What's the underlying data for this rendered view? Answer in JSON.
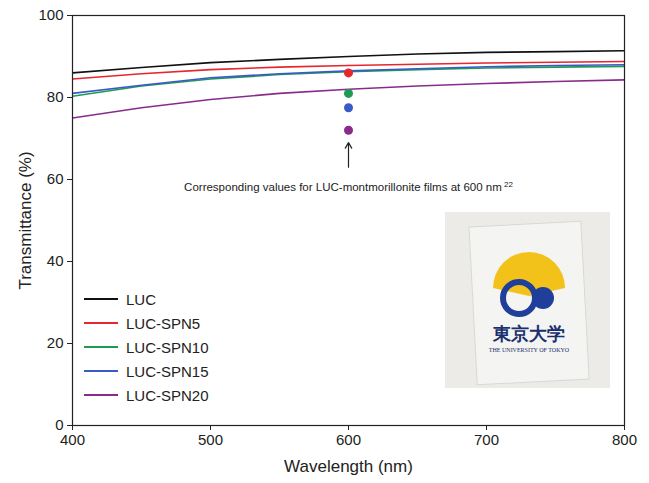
{
  "chart_data": {
    "type": "line",
    "xlabel": "Wavelength (nm)",
    "ylabel": "Transmittance (%)",
    "x": [
      400,
      450,
      500,
      550,
      600,
      650,
      700,
      750,
      800
    ],
    "xlim": [
      400,
      800
    ],
    "xticks": [
      400,
      500,
      600,
      700,
      800
    ],
    "ylim": [
      0,
      100
    ],
    "yticks": [
      0,
      20,
      40,
      60,
      80,
      100
    ],
    "grid": false,
    "legend": "lower left",
    "series": [
      {
        "name": "LUC",
        "color": "#111111",
        "values": [
          86,
          87.3,
          88.5,
          89.3,
          90,
          90.6,
          91,
          91.2,
          91.4
        ]
      },
      {
        "name": "LUC-SPN5",
        "color": "#e8262d",
        "values": [
          84.5,
          85.8,
          86.8,
          87.4,
          87.8,
          88.1,
          88.4,
          88.6,
          88.8
        ]
      },
      {
        "name": "LUC-SPN10",
        "color": "#1e9a52",
        "values": [
          80.3,
          82.8,
          84.5,
          85.6,
          86.3,
          86.8,
          87.2,
          87.4,
          87.6
        ]
      },
      {
        "name": "LUC-SPN15",
        "color": "#3a5bc7",
        "values": [
          81,
          83,
          84.8,
          85.8,
          86.5,
          87,
          87.5,
          87.8,
          88
        ]
      },
      {
        "name": "LUC-SPN20",
        "color": "#8a2b8c",
        "values": [
          75,
          77.5,
          79.5,
          81,
          82,
          82.8,
          83.4,
          83.9,
          84.3
        ]
      }
    ],
    "points": {
      "x": [
        600,
        600,
        600,
        600
      ],
      "values": [
        86,
        81,
        77.5,
        72
      ],
      "colors": [
        "#e8262d",
        "#1e9a52",
        "#3a5bc7",
        "#8a2b8c"
      ],
      "marker": "circle"
    },
    "annotation": {
      "text": "Corresponding values for LUC-montmorillonite films at 600 nm",
      "ref": "22",
      "x": 600,
      "y": 58,
      "arrow_from": 63,
      "arrow_to": 69
    },
    "inset": {
      "texts": [
        "東京大学",
        "THE UNIVERSITY OF TOKYO"
      ]
    }
  }
}
